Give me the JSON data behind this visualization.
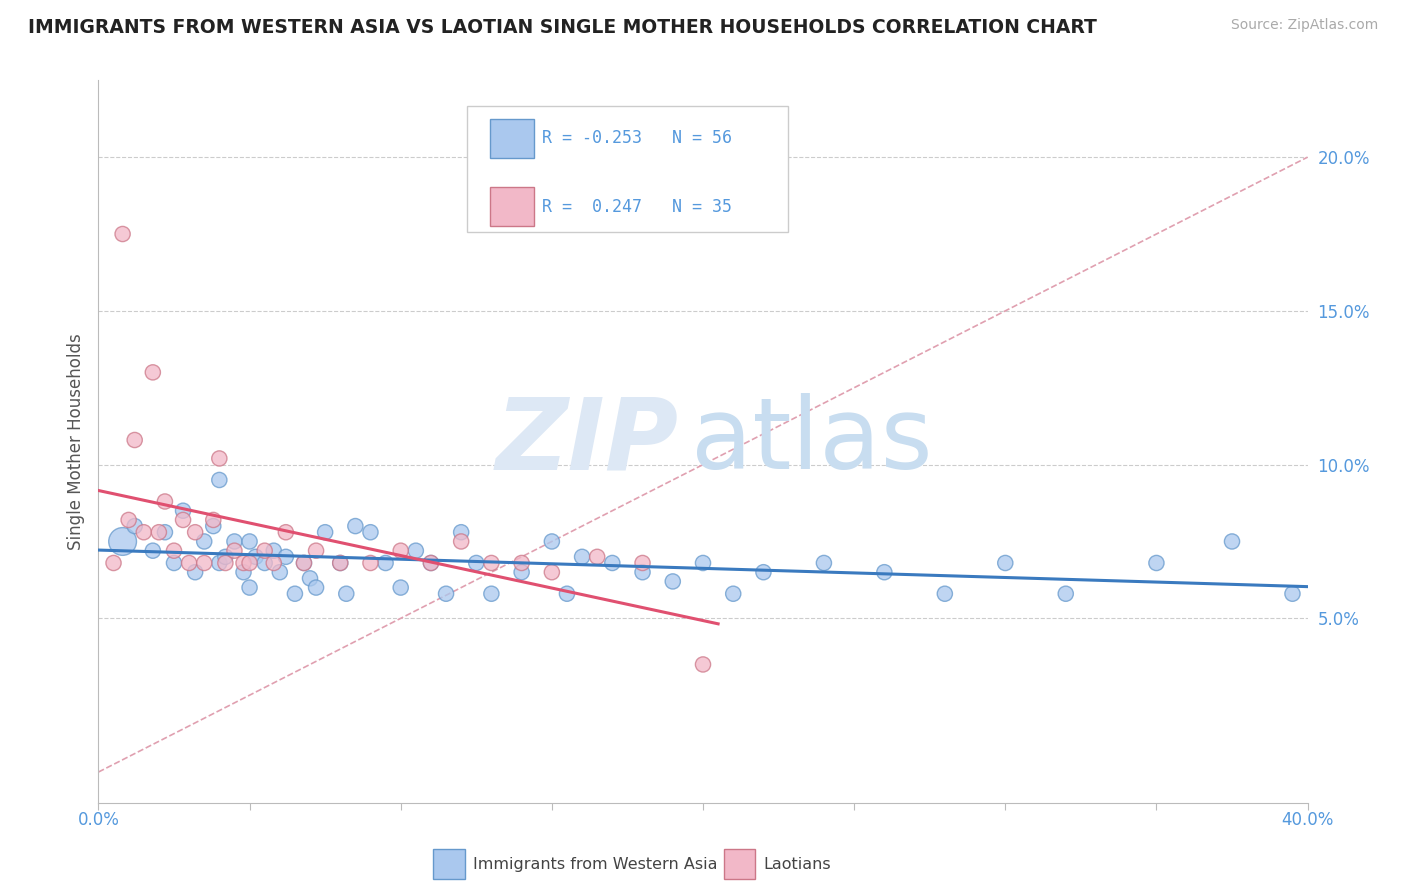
{
  "title": "IMMIGRANTS FROM WESTERN ASIA VS LAOTIAN SINGLE MOTHER HOUSEHOLDS CORRELATION CHART",
  "source": "Source: ZipAtlas.com",
  "ylabel": "Single Mother Households",
  "right_yticks": [
    0.05,
    0.1,
    0.15,
    0.2
  ],
  "right_yticklabels": [
    "5.0%",
    "10.0%",
    "15.0%",
    "20.0%"
  ],
  "xlim": [
    0.0,
    0.4
  ],
  "ylim": [
    -0.01,
    0.225
  ],
  "blue_color": "#aac8ee",
  "pink_color": "#f2b8c8",
  "blue_line_color": "#3a7abf",
  "pink_line_color": "#e05070",
  "diag_line_color": "#e0a0b0",
  "title_color": "#222222",
  "source_color": "#aaaaaa",
  "axis_color": "#5599dd",
  "watermark_zip_color": "#dde8f5",
  "watermark_atlas_color": "#c8ddf0",
  "blue_scatter_x": [
    0.008,
    0.012,
    0.018,
    0.022,
    0.025,
    0.028,
    0.032,
    0.035,
    0.038,
    0.04,
    0.04,
    0.042,
    0.045,
    0.048,
    0.05,
    0.05,
    0.052,
    0.055,
    0.058,
    0.06,
    0.062,
    0.065,
    0.068,
    0.07,
    0.072,
    0.075,
    0.08,
    0.082,
    0.085,
    0.09,
    0.095,
    0.1,
    0.105,
    0.11,
    0.115,
    0.12,
    0.125,
    0.13,
    0.14,
    0.15,
    0.155,
    0.16,
    0.17,
    0.18,
    0.19,
    0.2,
    0.21,
    0.22,
    0.24,
    0.26,
    0.28,
    0.3,
    0.32,
    0.35,
    0.375,
    0.395
  ],
  "blue_scatter_y": [
    0.075,
    0.08,
    0.072,
    0.078,
    0.068,
    0.085,
    0.065,
    0.075,
    0.08,
    0.068,
    0.095,
    0.07,
    0.075,
    0.065,
    0.06,
    0.075,
    0.07,
    0.068,
    0.072,
    0.065,
    0.07,
    0.058,
    0.068,
    0.063,
    0.06,
    0.078,
    0.068,
    0.058,
    0.08,
    0.078,
    0.068,
    0.06,
    0.072,
    0.068,
    0.058,
    0.078,
    0.068,
    0.058,
    0.065,
    0.075,
    0.058,
    0.07,
    0.068,
    0.065,
    0.062,
    0.068,
    0.058,
    0.065,
    0.068,
    0.065,
    0.058,
    0.068,
    0.058,
    0.068,
    0.075,
    0.058
  ],
  "blue_scatter_sizes": [
    400,
    120,
    120,
    120,
    120,
    120,
    120,
    120,
    120,
    120,
    120,
    120,
    120,
    120,
    120,
    120,
    120,
    120,
    120,
    120,
    120,
    120,
    120,
    120,
    120,
    120,
    120,
    120,
    120,
    120,
    120,
    120,
    120,
    120,
    120,
    120,
    120,
    120,
    120,
    120,
    120,
    120,
    120,
    120,
    120,
    120,
    120,
    120,
    120,
    120,
    120,
    120,
    120,
    120,
    120,
    120
  ],
  "pink_scatter_x": [
    0.005,
    0.008,
    0.01,
    0.012,
    0.015,
    0.018,
    0.02,
    0.022,
    0.025,
    0.028,
    0.03,
    0.032,
    0.035,
    0.038,
    0.04,
    0.042,
    0.045,
    0.048,
    0.05,
    0.055,
    0.058,
    0.062,
    0.068,
    0.072,
    0.08,
    0.09,
    0.1,
    0.11,
    0.12,
    0.13,
    0.14,
    0.15,
    0.165,
    0.18,
    0.2
  ],
  "pink_scatter_y": [
    0.068,
    0.175,
    0.082,
    0.108,
    0.078,
    0.13,
    0.078,
    0.088,
    0.072,
    0.082,
    0.068,
    0.078,
    0.068,
    0.082,
    0.102,
    0.068,
    0.072,
    0.068,
    0.068,
    0.072,
    0.068,
    0.078,
    0.068,
    0.072,
    0.068,
    0.068,
    0.072,
    0.068,
    0.075,
    0.068,
    0.068,
    0.065,
    0.07,
    0.068,
    0.035
  ],
  "pink_scatter_sizes": [
    120,
    120,
    120,
    120,
    120,
    120,
    120,
    120,
    120,
    120,
    120,
    120,
    120,
    120,
    120,
    120,
    120,
    120,
    120,
    120,
    120,
    120,
    120,
    120,
    120,
    120,
    120,
    120,
    120,
    120,
    120,
    120,
    120,
    120,
    120
  ]
}
